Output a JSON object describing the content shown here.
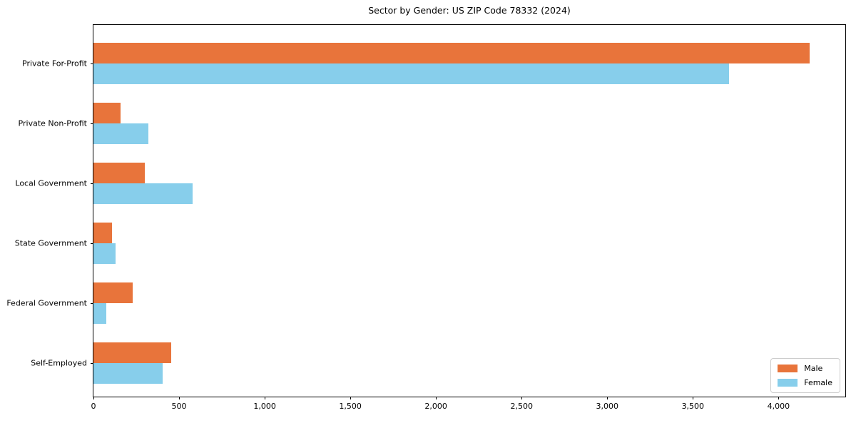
{
  "chart_data": {
    "type": "bar",
    "orientation": "horizontal",
    "title": "Sector by Gender: US ZIP Code 78332 (2024)",
    "xlabel": "",
    "ylabel": "",
    "categories": [
      "Private For-Profit",
      "Private Non-Profit",
      "Local Government",
      "State Government",
      "Federal Government",
      "Self-Employed"
    ],
    "series": [
      {
        "name": "Male",
        "color": "#e8743b",
        "values": [
          4180,
          160,
          300,
          110,
          230,
          455
        ]
      },
      {
        "name": "Female",
        "color": "#87ceeb",
        "values": [
          3710,
          320,
          580,
          130,
          75,
          405
        ]
      }
    ],
    "xlim": [
      0,
      4390
    ],
    "xticks": [
      0,
      500,
      1000,
      1500,
      2000,
      2500,
      3000,
      3500,
      4000
    ],
    "xtick_labels": [
      "0",
      "500",
      "1,000",
      "1,500",
      "2,000",
      "2,500",
      "3,000",
      "3,500",
      "4,000"
    ],
    "grid": false,
    "legend_position": "lower right",
    "colors": {
      "male": "#e8743b",
      "female": "#87ceeb",
      "spine": "#000000",
      "text": "#000000",
      "legend_border": "#cccccc"
    }
  }
}
